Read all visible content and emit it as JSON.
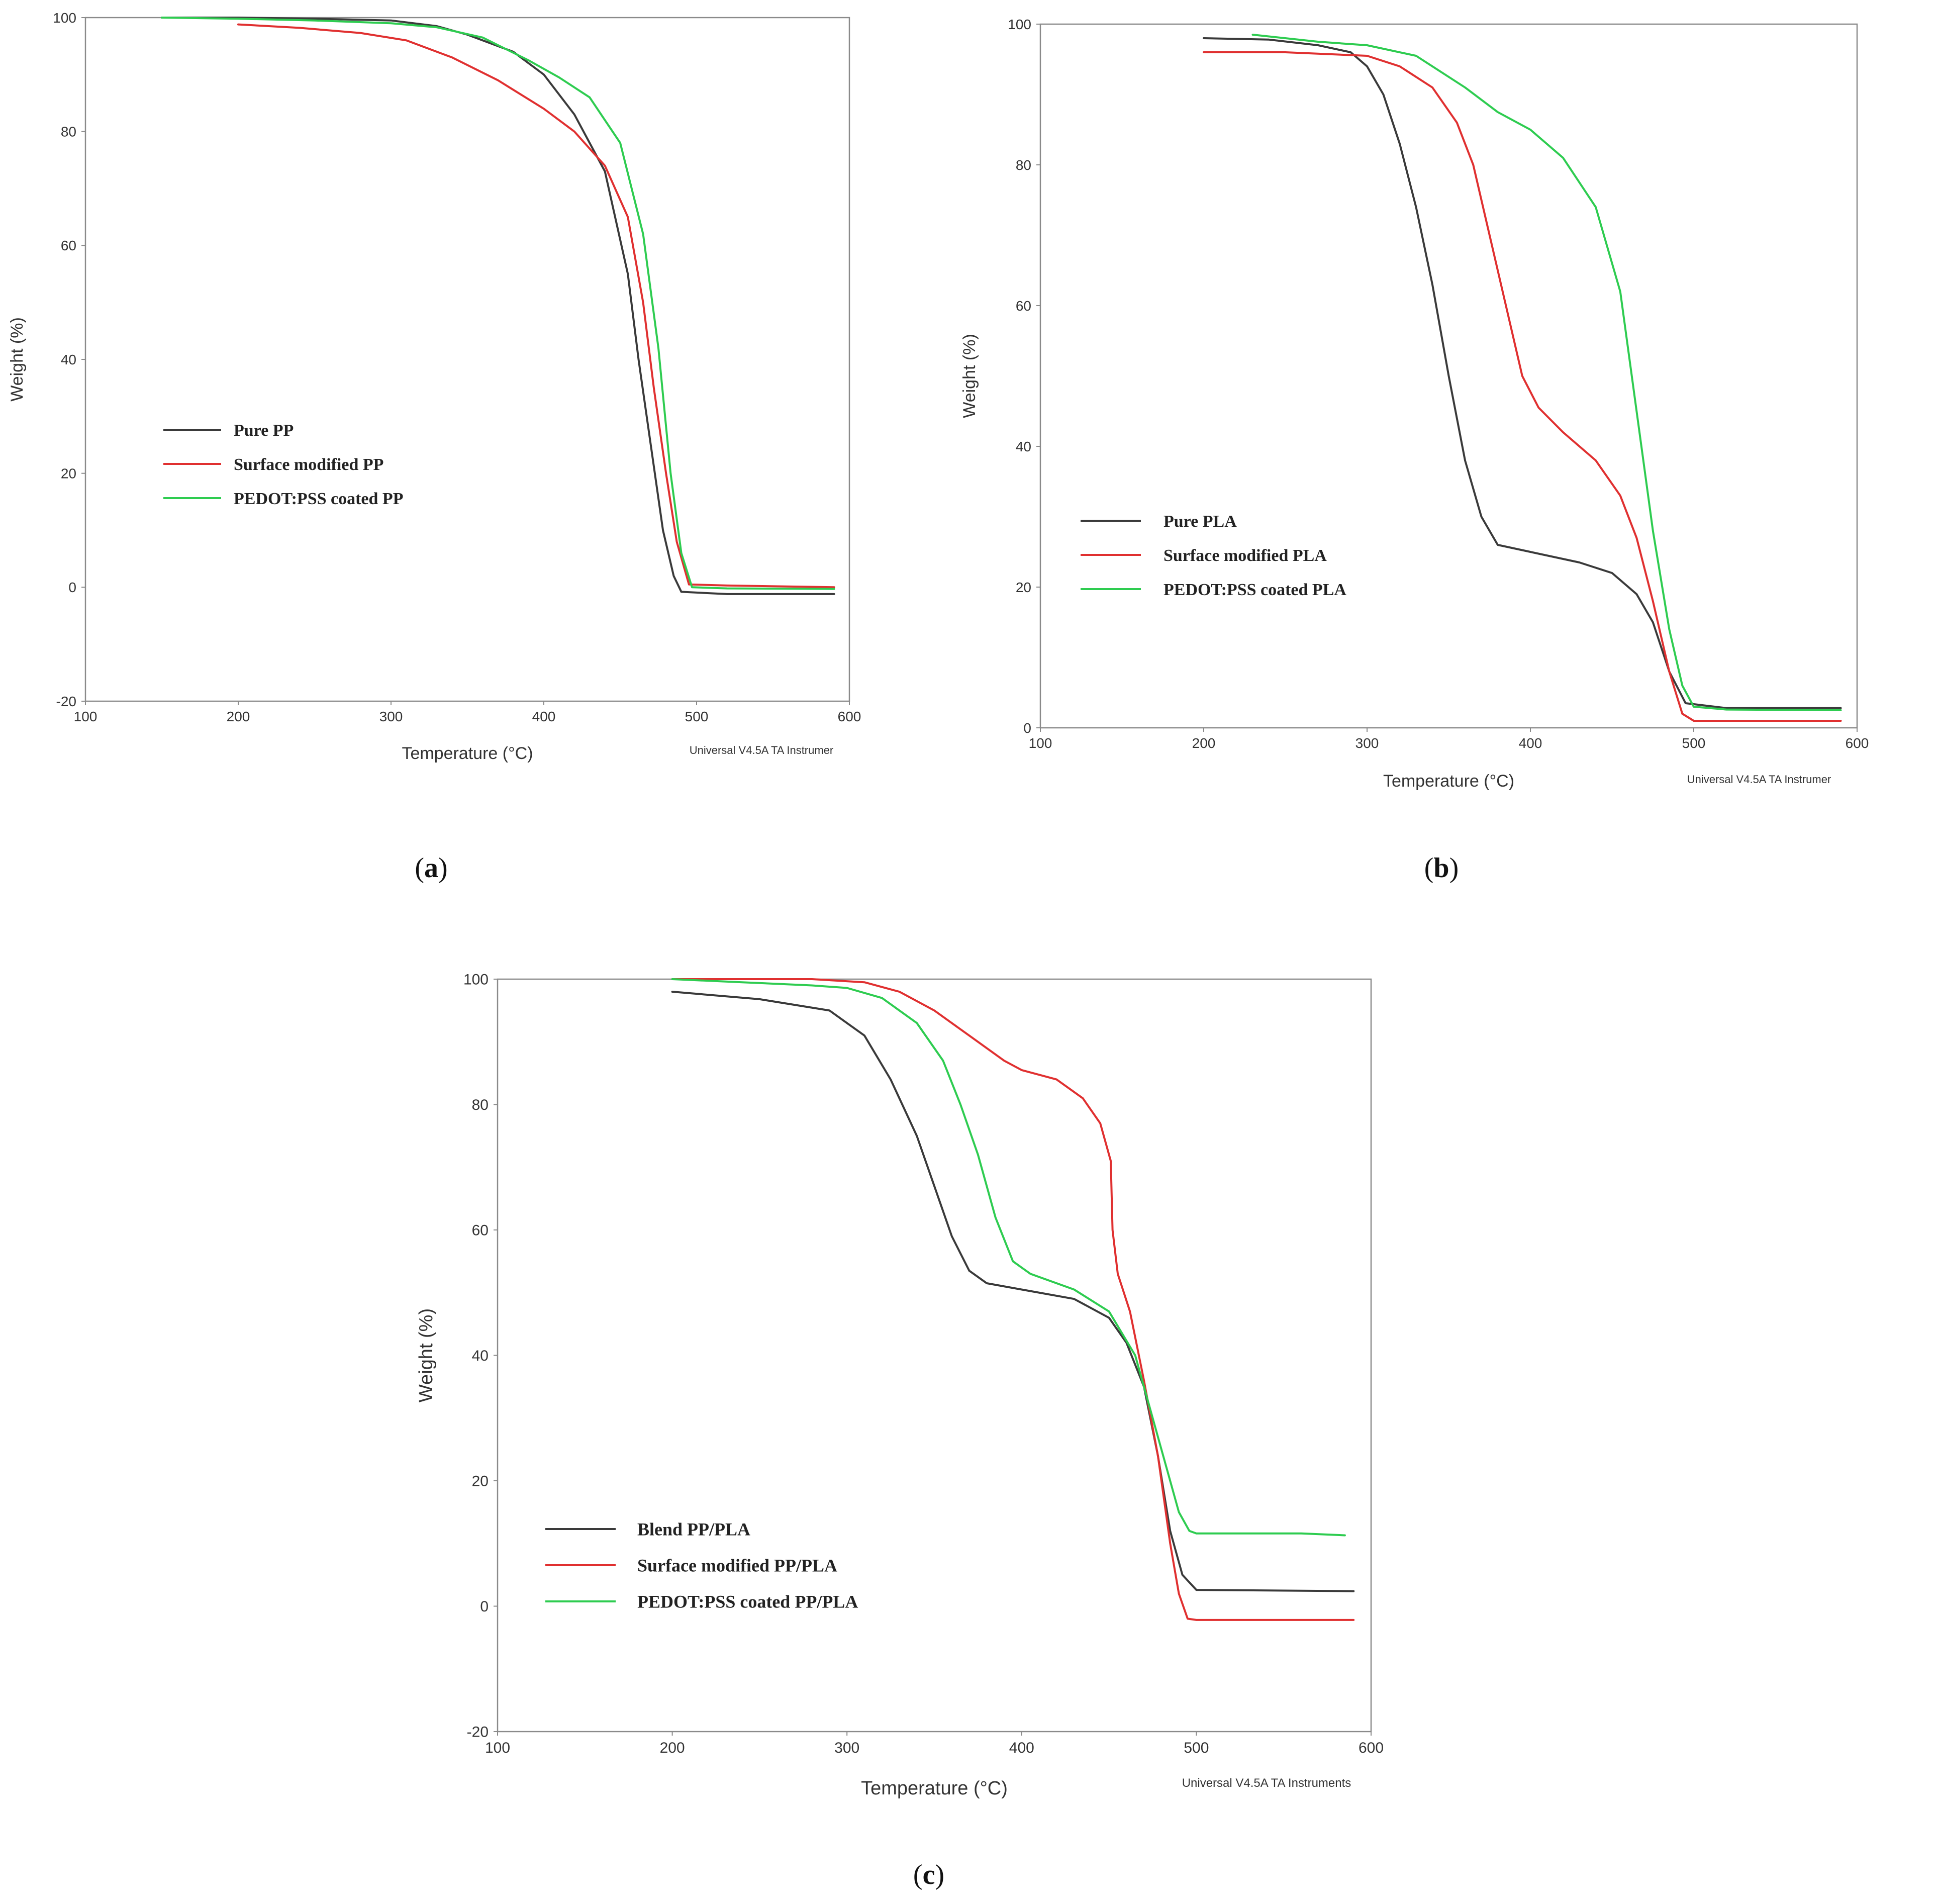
{
  "figure": {
    "instrument_credit": "Universal V4.5A TA Instrumer",
    "instrument_credit_full": "Universal V4.5A TA Instruments"
  },
  "chart_data": [
    {
      "id": "a",
      "type": "line",
      "panel_label": "a",
      "xlabel": "Temperature (°C)",
      "ylabel": "Weight (%)",
      "xlim": [
        100,
        600
      ],
      "ylim": [
        -20,
        100
      ],
      "xticks": [
        100,
        200,
        300,
        400,
        500,
        600
      ],
      "yticks": [
        -20,
        0,
        20,
        40,
        60,
        80,
        100
      ],
      "credit": "Universal V4.5A TA Instrumer",
      "legend_position": "middle-left",
      "series": [
        {
          "name": "Pure PP",
          "color": "#3a3a3a",
          "points": [
            [
              150,
              100
            ],
            [
              200,
              100
            ],
            [
              250,
              99.8
            ],
            [
              300,
              99.5
            ],
            [
              330,
              98.5
            ],
            [
              350,
              97
            ],
            [
              380,
              94
            ],
            [
              400,
              90
            ],
            [
              420,
              83
            ],
            [
              440,
              73
            ],
            [
              455,
              55
            ],
            [
              462,
              40
            ],
            [
              470,
              25
            ],
            [
              478,
              10
            ],
            [
              485,
              2
            ],
            [
              490,
              -0.8
            ],
            [
              520,
              -1.2
            ],
            [
              590,
              -1.2
            ]
          ]
        },
        {
          "name": "Surface modified PP",
          "color": "#e03030",
          "points": [
            [
              200,
              98.8
            ],
            [
              240,
              98.2
            ],
            [
              280,
              97.3
            ],
            [
              310,
              96
            ],
            [
              340,
              93
            ],
            [
              370,
              89
            ],
            [
              400,
              84
            ],
            [
              420,
              80
            ],
            [
              440,
              74
            ],
            [
              455,
              65
            ],
            [
              465,
              50
            ],
            [
              472,
              35
            ],
            [
              480,
              20
            ],
            [
              487,
              8
            ],
            [
              495,
              0.5
            ],
            [
              520,
              0.3
            ],
            [
              590,
              0
            ]
          ]
        },
        {
          "name": "PEDOT:PSS coated PP",
          "color": "#2ecc50",
          "points": [
            [
              150,
              100
            ],
            [
              200,
              99.8
            ],
            [
              250,
              99.5
            ],
            [
              300,
              99
            ],
            [
              330,
              98.3
            ],
            [
              360,
              96.5
            ],
            [
              390,
              92.5
            ],
            [
              410,
              89.5
            ],
            [
              430,
              86
            ],
            [
              450,
              78
            ],
            [
              465,
              62
            ],
            [
              475,
              42
            ],
            [
              483,
              20
            ],
            [
              490,
              6
            ],
            [
              497,
              0
            ],
            [
              520,
              -0.2
            ],
            [
              590,
              -0.3
            ]
          ]
        }
      ]
    },
    {
      "id": "b",
      "type": "line",
      "panel_label": "b",
      "xlabel": "Temperature (°C)",
      "ylabel": "Weight (%)",
      "xlim": [
        100,
        600
      ],
      "ylim": [
        0,
        100
      ],
      "xticks": [
        100,
        200,
        300,
        400,
        500,
        600
      ],
      "yticks": [
        0,
        20,
        40,
        60,
        80,
        100
      ],
      "credit": "Universal V4.5A TA Instrumer",
      "legend_position": "middle-left",
      "series": [
        {
          "name": "Pure PLA",
          "color": "#3a3a3a",
          "points": [
            [
              200,
              98
            ],
            [
              240,
              97.8
            ],
            [
              270,
              97
            ],
            [
              290,
              96
            ],
            [
              300,
              94
            ],
            [
              310,
              90
            ],
            [
              320,
              83
            ],
            [
              330,
              74
            ],
            [
              340,
              63
            ],
            [
              350,
              50
            ],
            [
              360,
              38
            ],
            [
              370,
              30
            ],
            [
              380,
              26
            ],
            [
              400,
              25
            ],
            [
              430,
              23.5
            ],
            [
              450,
              22
            ],
            [
              465,
              19
            ],
            [
              475,
              15
            ],
            [
              485,
              8
            ],
            [
              495,
              3.5
            ],
            [
              520,
              2.8
            ],
            [
              590,
              2.8
            ]
          ]
        },
        {
          "name": "Surface modified PLA",
          "color": "#e03030",
          "points": [
            [
              200,
              96
            ],
            [
              250,
              96
            ],
            [
              300,
              95.5
            ],
            [
              320,
              94
            ],
            [
              340,
              91
            ],
            [
              355,
              86
            ],
            [
              365,
              80
            ],
            [
              375,
              70
            ],
            [
              385,
              60
            ],
            [
              395,
              50
            ],
            [
              405,
              45.5
            ],
            [
              420,
              42
            ],
            [
              440,
              38
            ],
            [
              455,
              33
            ],
            [
              465,
              27
            ],
            [
              475,
              18
            ],
            [
              485,
              8
            ],
            [
              493,
              2
            ],
            [
              500,
              1
            ],
            [
              590,
              1
            ]
          ]
        },
        {
          "name": "PEDOT:PSS coated PLA",
          "color": "#2ecc50",
          "points": [
            [
              230,
              98.5
            ],
            [
              270,
              97.5
            ],
            [
              300,
              97
            ],
            [
              330,
              95.5
            ],
            [
              360,
              91
            ],
            [
              380,
              87.5
            ],
            [
              400,
              85
            ],
            [
              420,
              81
            ],
            [
              440,
              74
            ],
            [
              455,
              62
            ],
            [
              465,
              45
            ],
            [
              475,
              28
            ],
            [
              485,
              14
            ],
            [
              493,
              6
            ],
            [
              500,
              3
            ],
            [
              520,
              2.6
            ],
            [
              590,
              2.5
            ]
          ]
        }
      ]
    },
    {
      "id": "c",
      "type": "line",
      "panel_label": "c",
      "xlabel": "Temperature (°C)",
      "ylabel": "Weight (%)",
      "xlim": [
        100,
        600
      ],
      "ylim": [
        -20,
        100
      ],
      "xticks": [
        100,
        200,
        300,
        400,
        500,
        600
      ],
      "yticks": [
        -20,
        0,
        20,
        40,
        60,
        80,
        100
      ],
      "credit": "Universal V4.5A TA Instruments",
      "legend_position": "bottom-left",
      "series": [
        {
          "name": "Blend PP/PLA",
          "color": "#3a3a3a",
          "points": [
            [
              200,
              98
            ],
            [
              250,
              96.8
            ],
            [
              290,
              95
            ],
            [
              310,
              91
            ],
            [
              325,
              84
            ],
            [
              340,
              75
            ],
            [
              350,
              67
            ],
            [
              360,
              59
            ],
            [
              370,
              53.5
            ],
            [
              380,
              51.5
            ],
            [
              400,
              50.5
            ],
            [
              430,
              49
            ],
            [
              450,
              46
            ],
            [
              460,
              42
            ],
            [
              470,
              35
            ],
            [
              478,
              24
            ],
            [
              485,
              12
            ],
            [
              492,
              5
            ],
            [
              500,
              2.6
            ],
            [
              590,
              2.4
            ]
          ]
        },
        {
          "name": "Surface modified PP/PLA",
          "color": "#e03030",
          "points": [
            [
              200,
              100
            ],
            [
              280,
              100
            ],
            [
              310,
              99.5
            ],
            [
              330,
              98
            ],
            [
              350,
              95
            ],
            [
              370,
              91
            ],
            [
              390,
              87
            ],
            [
              400,
              85.5
            ],
            [
              420,
              84
            ],
            [
              435,
              81
            ],
            [
              445,
              77
            ],
            [
              451,
              71
            ],
            [
              452,
              60
            ],
            [
              455,
              53
            ],
            [
              462,
              47
            ],
            [
              470,
              36
            ],
            [
              478,
              24
            ],
            [
              485,
              10
            ],
            [
              490,
              2
            ],
            [
              495,
              -2
            ],
            [
              500,
              -2.2
            ],
            [
              590,
              -2.2
            ]
          ]
        },
        {
          "name": "PEDOT:PSS coated PP/PLA",
          "color": "#2ecc50",
          "points": [
            [
              200,
              100
            ],
            [
              240,
              99.5
            ],
            [
              280,
              99
            ],
            [
              300,
              98.6
            ],
            [
              320,
              97
            ],
            [
              340,
              93
            ],
            [
              355,
              87
            ],
            [
              365,
              80
            ],
            [
              375,
              72
            ],
            [
              385,
              62
            ],
            [
              395,
              55
            ],
            [
              405,
              53
            ],
            [
              430,
              50.5
            ],
            [
              450,
              47
            ],
            [
              465,
              40
            ],
            [
              475,
              30
            ],
            [
              483,
              22
            ],
            [
              490,
              15
            ],
            [
              496,
              12
            ],
            [
              500,
              11.6
            ],
            [
              560,
              11.6
            ],
            [
              585,
              11.3
            ]
          ]
        }
      ]
    }
  ]
}
